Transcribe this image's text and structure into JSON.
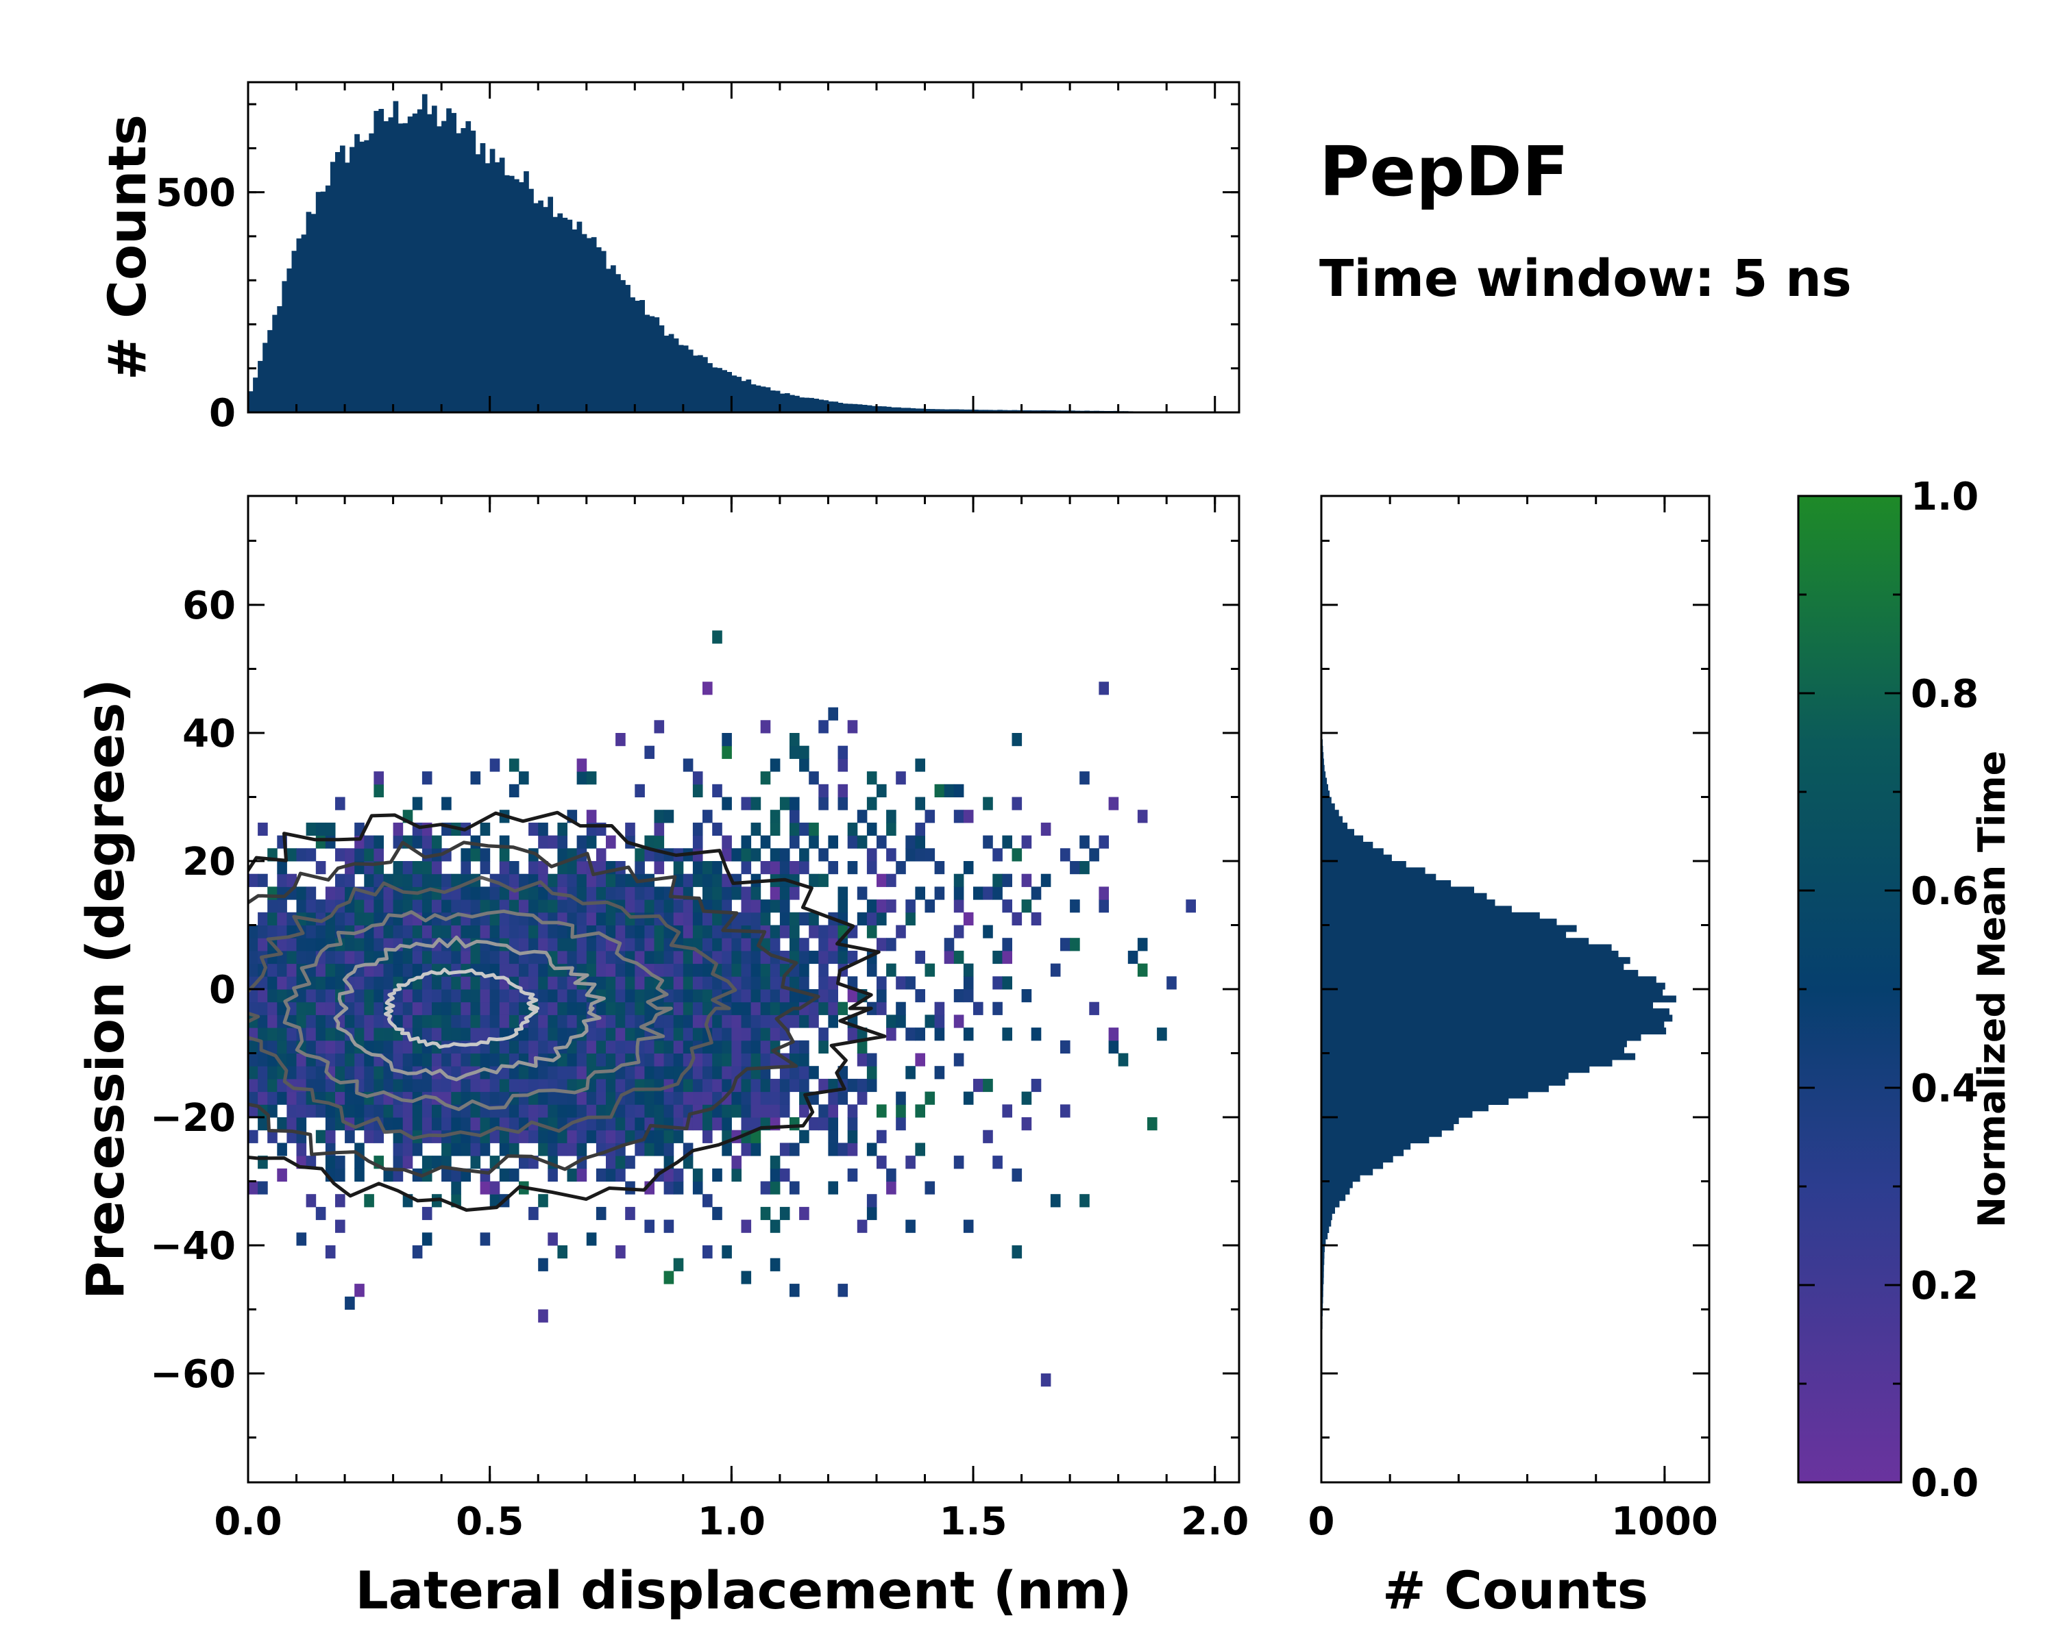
{
  "title": "PepDF",
  "subtitle": "Time window: 5 ns",
  "colors": {
    "bar": "#0a3a66",
    "cmap_low": "#6a339e",
    "cmap_mid_low": "#2c3d8f",
    "cmap_mid": "#063f6e",
    "cmap_high": "#1e8a28"
  },
  "chart_data": [
    {
      "id": "top-histogram",
      "type": "bar",
      "xlim": [
        0,
        2.05
      ],
      "ylim": [
        0,
        750
      ],
      "ylabel": "# Counts",
      "yticks": [
        0,
        500
      ],
      "yticklabels": [
        "0",
        "500"
      ],
      "bin_width": 0.01,
      "envelope_x": [
        0.0,
        0.05,
        0.1,
        0.15,
        0.2,
        0.25,
        0.3,
        0.35,
        0.4,
        0.45,
        0.5,
        0.55,
        0.6,
        0.65,
        0.7,
        0.75,
        0.8,
        0.85,
        0.9,
        0.95,
        1.0,
        1.1,
        1.2,
        1.3,
        1.4,
        1.5,
        1.6,
        1.7,
        1.8,
        1.9,
        2.0
      ],
      "envelope_y": [
        30,
        200,
        370,
        510,
        590,
        640,
        680,
        690,
        670,
        640,
        590,
        540,
        500,
        460,
        400,
        340,
        260,
        200,
        150,
        115,
        85,
        45,
        25,
        14,
        8,
        6,
        5,
        4,
        3,
        1,
        0
      ]
    },
    {
      "id": "main-2d-histogram",
      "type": "heatmap",
      "xlabel": "Lateral displacement (nm)",
      "ylabel": "Precession (degrees)",
      "xlim": [
        0,
        2.05
      ],
      "ylim": [
        -77,
        77
      ],
      "xticks": [
        0.0,
        0.5,
        1.0,
        1.5,
        2.0
      ],
      "xticklabels": [
        "0.0",
        "0.5",
        "1.0",
        "1.5",
        "2.0"
      ],
      "yticks": [
        -60,
        -40,
        -20,
        0,
        20,
        40,
        60
      ],
      "yticklabels": [
        "−60",
        "−40",
        "−20",
        "0",
        "20",
        "40",
        "60"
      ],
      "density_center": [
        0.42,
        -3
      ],
      "density_spread": [
        0.3,
        13
      ],
      "contour_levels": 6
    },
    {
      "id": "right-histogram",
      "type": "bar",
      "orientation": "horizontal",
      "xlim": [
        0,
        1130
      ],
      "ylim": [
        -77,
        77
      ],
      "xlabel": "# Counts",
      "xticks": [
        0,
        1000
      ],
      "xticklabels": [
        "0",
        "1000"
      ],
      "bin_width": 1,
      "envelope_y": [
        -60,
        -50,
        -40,
        -35,
        -30,
        -25,
        -20,
        -15,
        -10,
        -5,
        0,
        5,
        10,
        15,
        20,
        25,
        30,
        35,
        40
      ],
      "envelope_x": [
        1,
        4,
        10,
        35,
        100,
        250,
        430,
        690,
        900,
        1010,
        1000,
        880,
        690,
        450,
        220,
        80,
        25,
        8,
        2
      ]
    },
    {
      "id": "colorbar",
      "type": "colorbar",
      "label": "Normalized Mean Time",
      "range": [
        0.0,
        1.0
      ],
      "ticks": [
        0.0,
        0.2,
        0.4,
        0.6,
        0.8,
        1.0
      ],
      "ticklabels": [
        "0.0",
        "0.2",
        "0.4",
        "0.6",
        "0.8",
        "1.0"
      ]
    }
  ]
}
